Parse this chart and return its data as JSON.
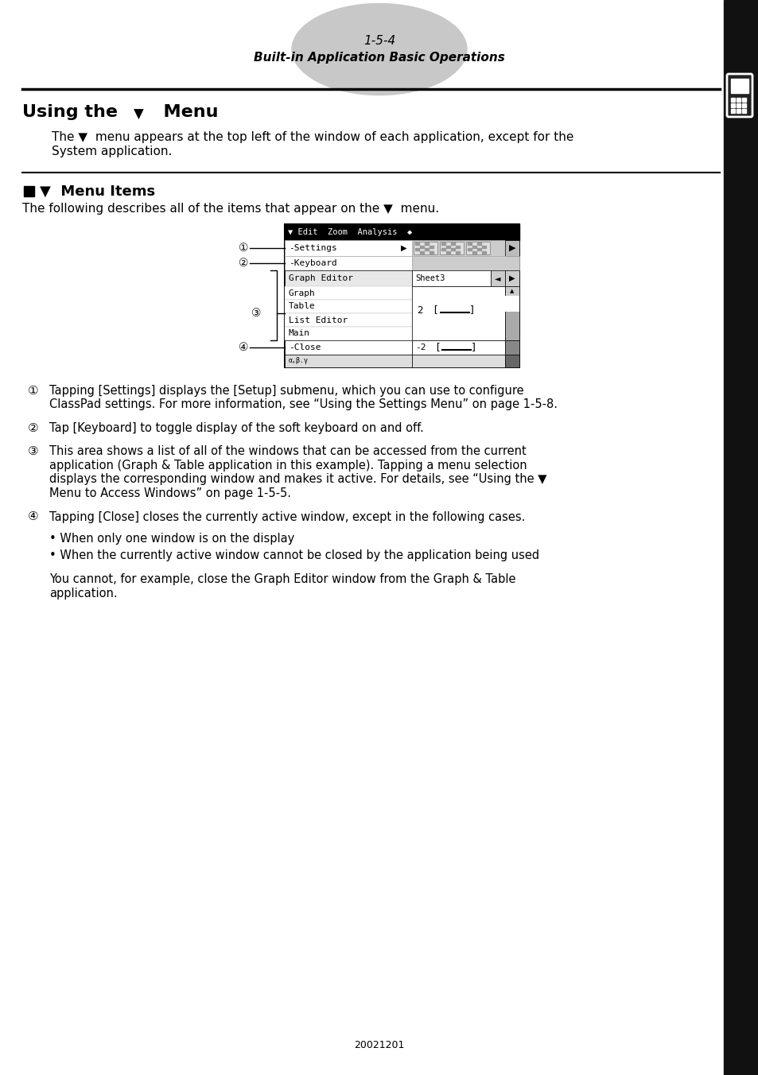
{
  "page_num": "1-5-4",
  "page_subtitle": "Built-in Application Basic Operations",
  "footer": "20021201",
  "bg_color": "#ffffff",
  "text_color": "#000000",
  "tab_color": "#c8c8c8",
  "right_bar_color": "#111111",
  "menu_header": "▼ Edit  Zoom  Analysis  ◆",
  "menu_row1": "-Settings",
  "menu_row1_arrow": "▶",
  "menu_row2": "-Keyboard",
  "menu_row3": "Graph Editor",
  "menu_sheet": "Sheet3",
  "menu_windows": [
    "Graph",
    "Table",
    "List Editor",
    "Main"
  ],
  "menu_close": "-Close",
  "callout_labels": [
    "①",
    "②",
    "③",
    "④"
  ],
  "item1_line1": "Tapping [Settings] displays the [Setup] submenu, which you can use to configure",
  "item1_line2": "ClassPad settings. For more information, see “Using the Settings Menu” on page 1-5-8.",
  "item2": "Tap [Keyboard] to toggle display of the soft keyboard on and off.",
  "item3_line1": "This area shows a list of all of the windows that can be accessed from the current",
  "item3_line2": "application (Graph & Table application in this example). Tapping a menu selection",
  "item3_line3": "displays the corresponding window and makes it active. For details, see “Using the ▼",
  "item3_line4": "Menu to Access Windows” on page 1-5-5.",
  "item4": "Tapping [Close] closes the currently active window, except in the following cases.",
  "bullet1": "• When only one window is on the display",
  "bullet2": "• When the currently active window cannot be closed by the application being used",
  "final_line1": "You cannot, for example, close the Graph Editor window from the Graph & Table",
  "final_line2": "application.",
  "section_title_pre": "Using the ",
  "section_title_post": "  Menu",
  "intro_line1": "The ▼  menu appears at the top left of the window of each application, except for the",
  "intro_line2": "System application.",
  "subsec_label": "▼  Menu Items",
  "desc_line": "The following describes all of the items that appear on the ▼  menu."
}
